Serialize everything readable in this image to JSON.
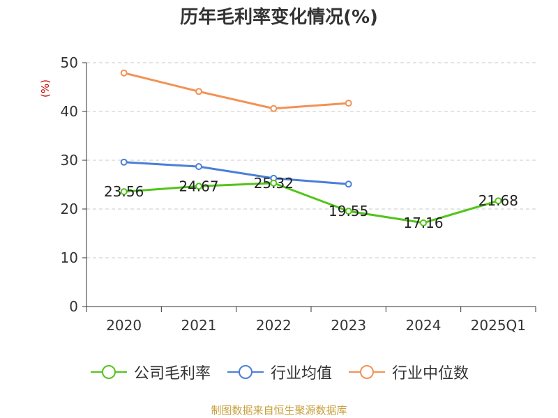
{
  "chart_data": {
    "type": "line",
    "title": "历年毛利率变化情况(%)",
    "ylabel": "(%)",
    "xlabel": "",
    "categories": [
      "2020",
      "2021",
      "2022",
      "2023",
      "2024",
      "2025Q1"
    ],
    "ylim": [
      0,
      50
    ],
    "yticks": [
      "0",
      "10",
      "20",
      "30",
      "40",
      "50"
    ],
    "grid": "horizontal-dashed",
    "series": [
      {
        "name": "公司毛利率",
        "color": "#52c41a",
        "values": [
          23.56,
          24.67,
          25.32,
          19.55,
          17.16,
          21.68
        ],
        "labels": [
          "23.56",
          "24.67",
          "25.32",
          "19.55",
          "17.16",
          "21.68"
        ]
      },
      {
        "name": "行业均值",
        "color": "#4a7fd8",
        "values": [
          29.6,
          28.7,
          26.3,
          25.1,
          null,
          null
        ]
      },
      {
        "name": "行业中位数",
        "color": "#f39154",
        "values": [
          47.9,
          44.1,
          40.6,
          41.7,
          null,
          null
        ]
      }
    ],
    "legend_position": "bottom"
  },
  "footer": {
    "source": "制图数据来自恒生聚源数据库"
  }
}
